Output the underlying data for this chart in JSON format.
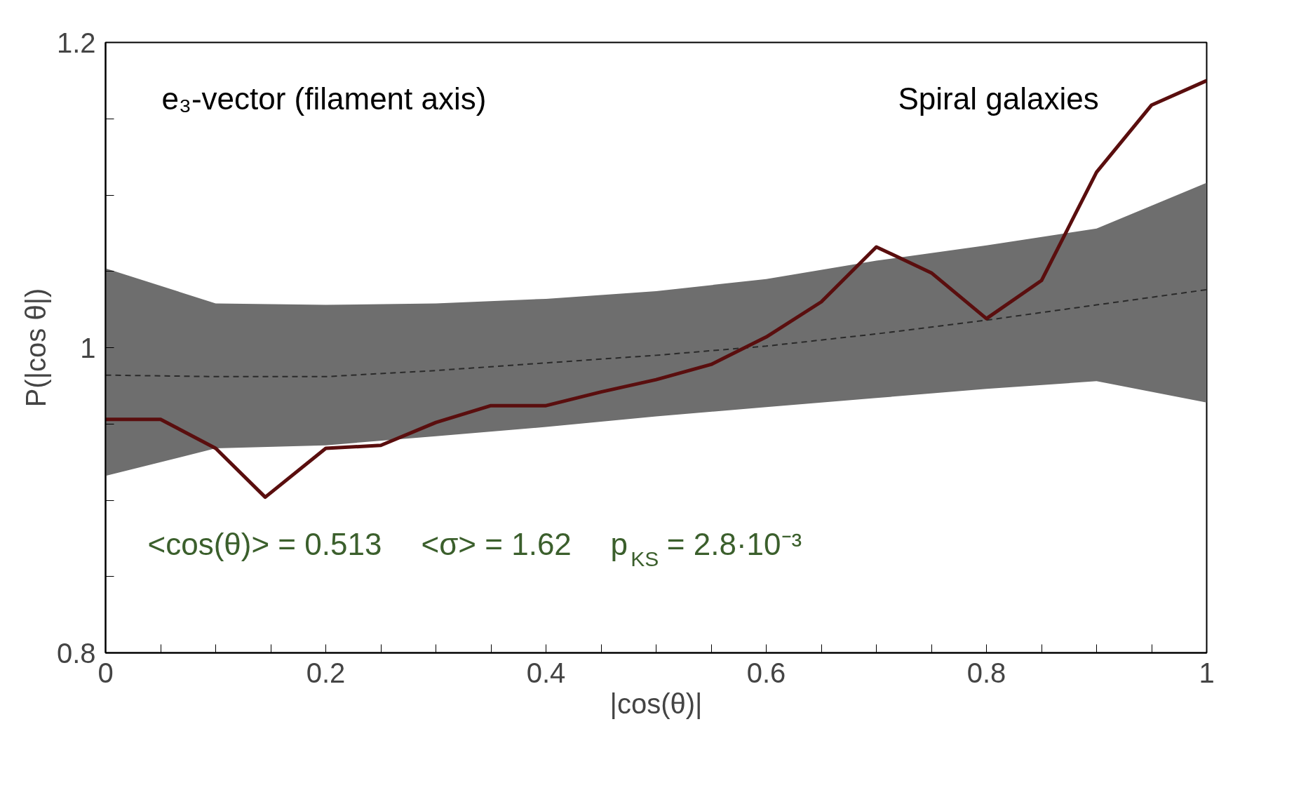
{
  "chart_data": {
    "type": "line",
    "xlabel": "|cos(θ)|",
    "ylabel": "P(|cos θ|)",
    "annotations": [
      "e₃-vector  (filament axis)",
      "Spiral galaxies",
      "<cos(θ)> = 0.513",
      "<σ> = 1.62",
      "p$_{KS}$ = 2.8·10⁻³"
    ],
    "series": [
      {
        "color": "#2a2a2a",
        "line_style": "dashed",
        "x": [
          0,
          0.1,
          0.2,
          0.3,
          0.4,
          0.5,
          0.6,
          0.7,
          0.8,
          0.9,
          1.0
        ],
        "values": [
          0.982,
          0.981,
          0.981,
          0.985,
          0.99,
          0.995,
          1.001,
          1.009,
          1.018,
          1.028,
          1.038
        ],
        "lower": [
          0.916,
          0.934,
          0.936,
          0.942,
          0.948,
          0.955,
          0.961,
          0.967,
          0.973,
          0.978,
          0.964
        ],
        "upper": [
          1.052,
          1.029,
          1.028,
          1.029,
          1.032,
          1.037,
          1.045,
          1.057,
          1.067,
          1.078,
          1.108
        ]
      },
      {
        "color": "#5a0e0e",
        "line_style": "solid",
        "x": [
          0,
          0.05,
          0.1,
          0.145,
          0.2,
          0.25,
          0.3,
          0.35,
          0.4,
          0.45,
          0.5,
          0.55,
          0.6,
          0.65,
          0.7,
          0.75,
          0.8,
          0.85,
          0.9,
          0.95,
          1.0
        ],
        "values": [
          0.953,
          0.953,
          0.934,
          0.902,
          0.934,
          0.936,
          0.951,
          0.962,
          0.962,
          0.971,
          0.979,
          0.989,
          1.007,
          1.03,
          1.066,
          1.049,
          1.019,
          1.044,
          1.115,
          1.159,
          1.175
        ]
      }
    ],
    "xlim": [
      0,
      1
    ],
    "ylim": [
      0.8,
      1.2
    ],
    "xticks": [
      0,
      {
        "value": 0.05,
        "label": null
      },
      {
        "value": 0.1,
        "label": null
      },
      {
        "value": 0.15,
        "label": null
      },
      0.2,
      {
        "value": 0.25,
        "label": null
      },
      {
        "value": 0.3,
        "label": null
      },
      {
        "value": 0.35,
        "label": null
      },
      0.4,
      {
        "value": 0.45,
        "label": null
      },
      {
        "value": 0.5,
        "label": null
      },
      {
        "value": 0.55,
        "label": null
      },
      0.6,
      {
        "value": 0.65,
        "label": null
      },
      {
        "value": 0.7,
        "label": null
      },
      {
        "value": 0.75,
        "label": null
      },
      0.8,
      {
        "value": 0.85,
        "label": null
      },
      {
        "value": 0.9,
        "label": null
      },
      {
        "value": 0.95,
        "label": null
      },
      1
    ],
    "yticks": [
      0.8,
      {
        "value": 0.85,
        "label": null
      },
      {
        "value": 0.9,
        "label": null
      },
      {
        "value": 0.95,
        "label": null
      },
      1,
      {
        "value": 1.05,
        "label": null
      },
      {
        "value": 1.1,
        "label": null
      },
      {
        "value": 1.15,
        "label": null
      },
      1.2
    ],
    "grid": false,
    "marker": "none"
  }
}
